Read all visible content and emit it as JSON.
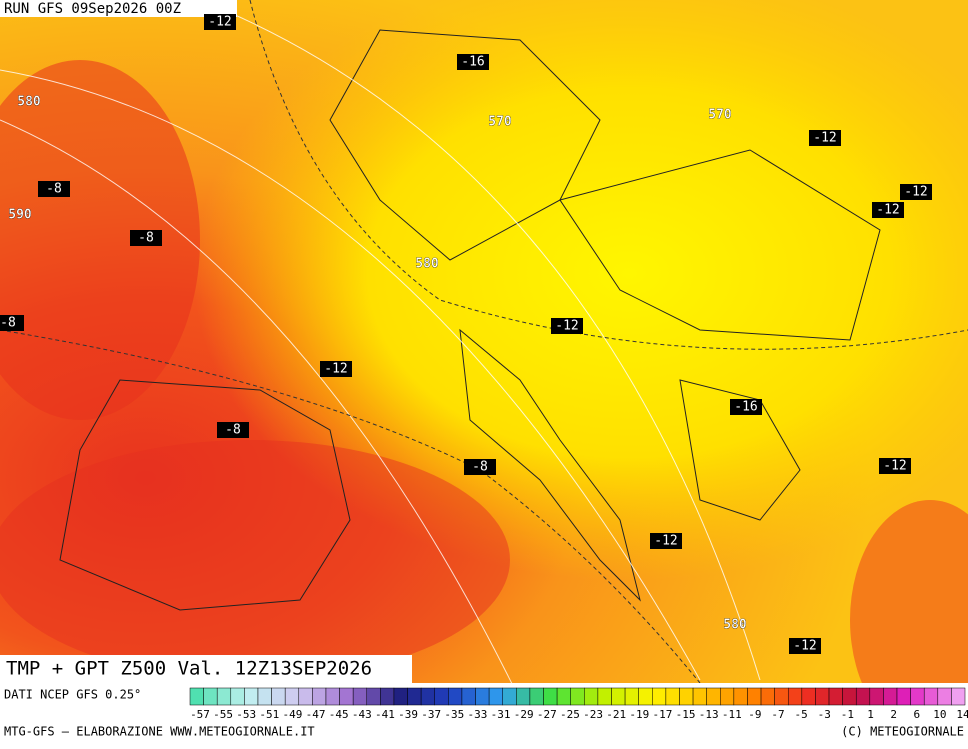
{
  "header": {
    "run": "RUN GFS 09Sep2026 00Z"
  },
  "map": {
    "title": "TMP + GPT Z500 Val. 12Z13SEP2026",
    "contour_labels": [
      -12,
      -16,
      580,
      570,
      570,
      -12,
      -8,
      -12,
      -12,
      590,
      -8,
      580,
      -8,
      -12,
      -12,
      -16,
      -8,
      -8,
      -12,
      -12,
      580,
      -12
    ]
  },
  "colorbar": {
    "source": "DATI NCEP GFS 0.25°",
    "ticks": [
      -57,
      -55,
      -53,
      -51,
      -49,
      -47,
      -45,
      -43,
      -41,
      -39,
      -37,
      -35,
      -33,
      -31,
      -29,
      -27,
      -25,
      -23,
      -21,
      -19,
      -17,
      -15,
      -13,
      -11,
      -9,
      -7,
      -5,
      -3,
      -1,
      1,
      2,
      6,
      10,
      14
    ]
  },
  "footer": {
    "left": "MTG-GFS — ELABORAZIONE WWW.METEOGIORNALE.IT",
    "right": "(C) METEOGIORNALE"
  }
}
